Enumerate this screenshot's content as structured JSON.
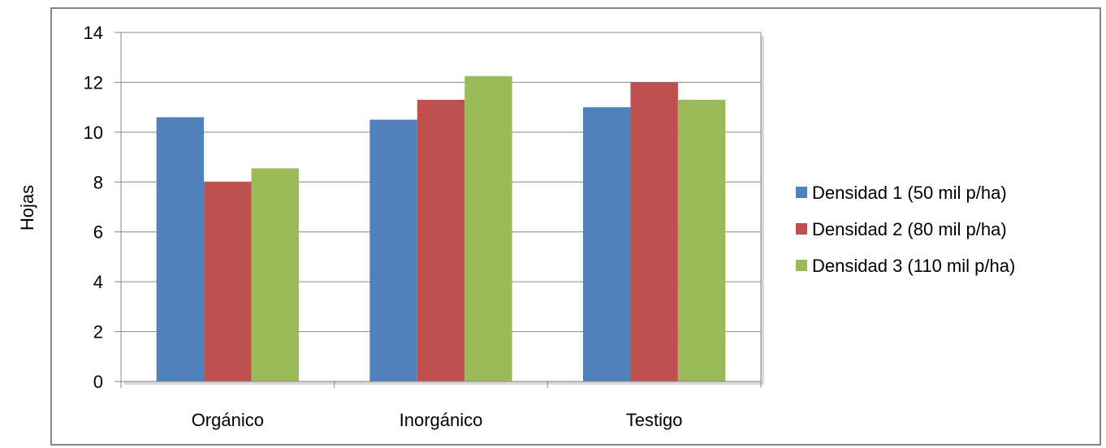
{
  "chart_data": {
    "type": "bar",
    "categories": [
      "Orgánico",
      "Inorgánico",
      "Testigo"
    ],
    "series": [
      {
        "name": "Densidad 1 (50 mil p/ha)",
        "values": [
          10.6,
          10.5,
          11.0
        ],
        "color": "#4f81bd"
      },
      {
        "name": "Densidad 2 (80 mil p/ha)",
        "values": [
          8.0,
          11.3,
          12.0
        ],
        "color": "#c0504d"
      },
      {
        "name": "Densidad 3 (110 mil p/ha)",
        "values": [
          8.55,
          12.25,
          11.3
        ],
        "color": "#9bbb59"
      }
    ],
    "title": "",
    "xlabel": "",
    "ylabel": "Hojas",
    "ylim": [
      0,
      14
    ],
    "yticks": [
      "0",
      "2",
      "4",
      "6",
      "8",
      "10",
      "12",
      "14"
    ],
    "grid": true,
    "legend_position": "right"
  }
}
